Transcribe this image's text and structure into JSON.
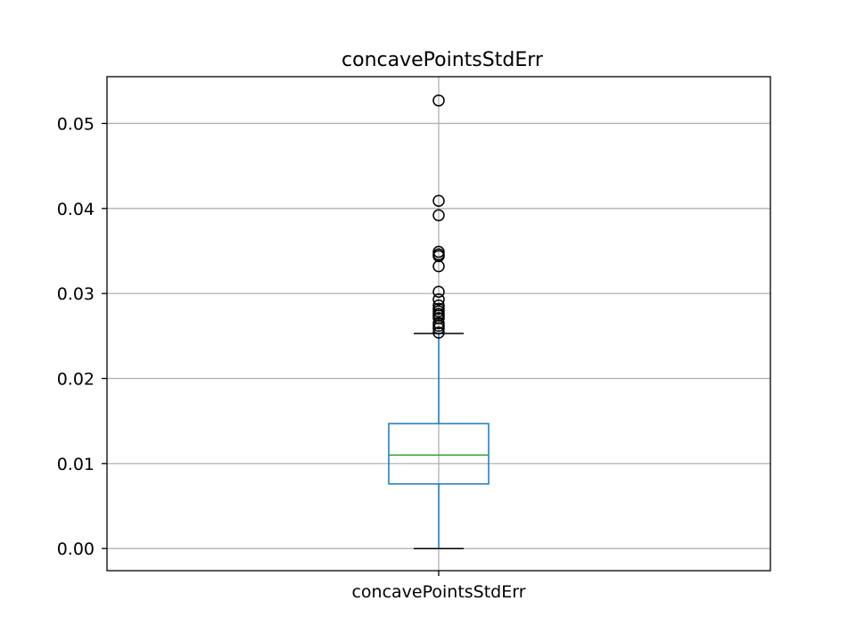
{
  "chart_data": {
    "type": "box",
    "title": "concavePointsStdErr",
    "xlabel": "",
    "ylabel": "",
    "categories": [
      "concavePointsStdErr"
    ],
    "ylim": [
      -0.0026,
      0.0555
    ],
    "yticks": [
      0.0,
      0.01,
      0.02,
      0.03,
      0.04,
      0.05
    ],
    "ytick_labels": [
      "0.00",
      "0.01",
      "0.02",
      "0.03",
      "0.04",
      "0.05"
    ],
    "grid": true,
    "box": {
      "whisker_low": 0.0,
      "q1": 0.0076,
      "median": 0.011,
      "q3": 0.0147,
      "whisker_high": 0.0253,
      "outliers": [
        0.0527,
        0.0409,
        0.0392,
        0.0349,
        0.0346,
        0.0344,
        0.0332,
        0.0302,
        0.0293,
        0.0286,
        0.0282,
        0.0279,
        0.0276,
        0.0274,
        0.0271,
        0.0265,
        0.0262,
        0.0259,
        0.0254
      ]
    },
    "colors": {
      "box": "#1f77b4",
      "median": "#2ca02c",
      "whisker": "#1f77b4",
      "cap": "#000000",
      "grid": "#b0b0b0",
      "outlier": "#000000"
    }
  }
}
